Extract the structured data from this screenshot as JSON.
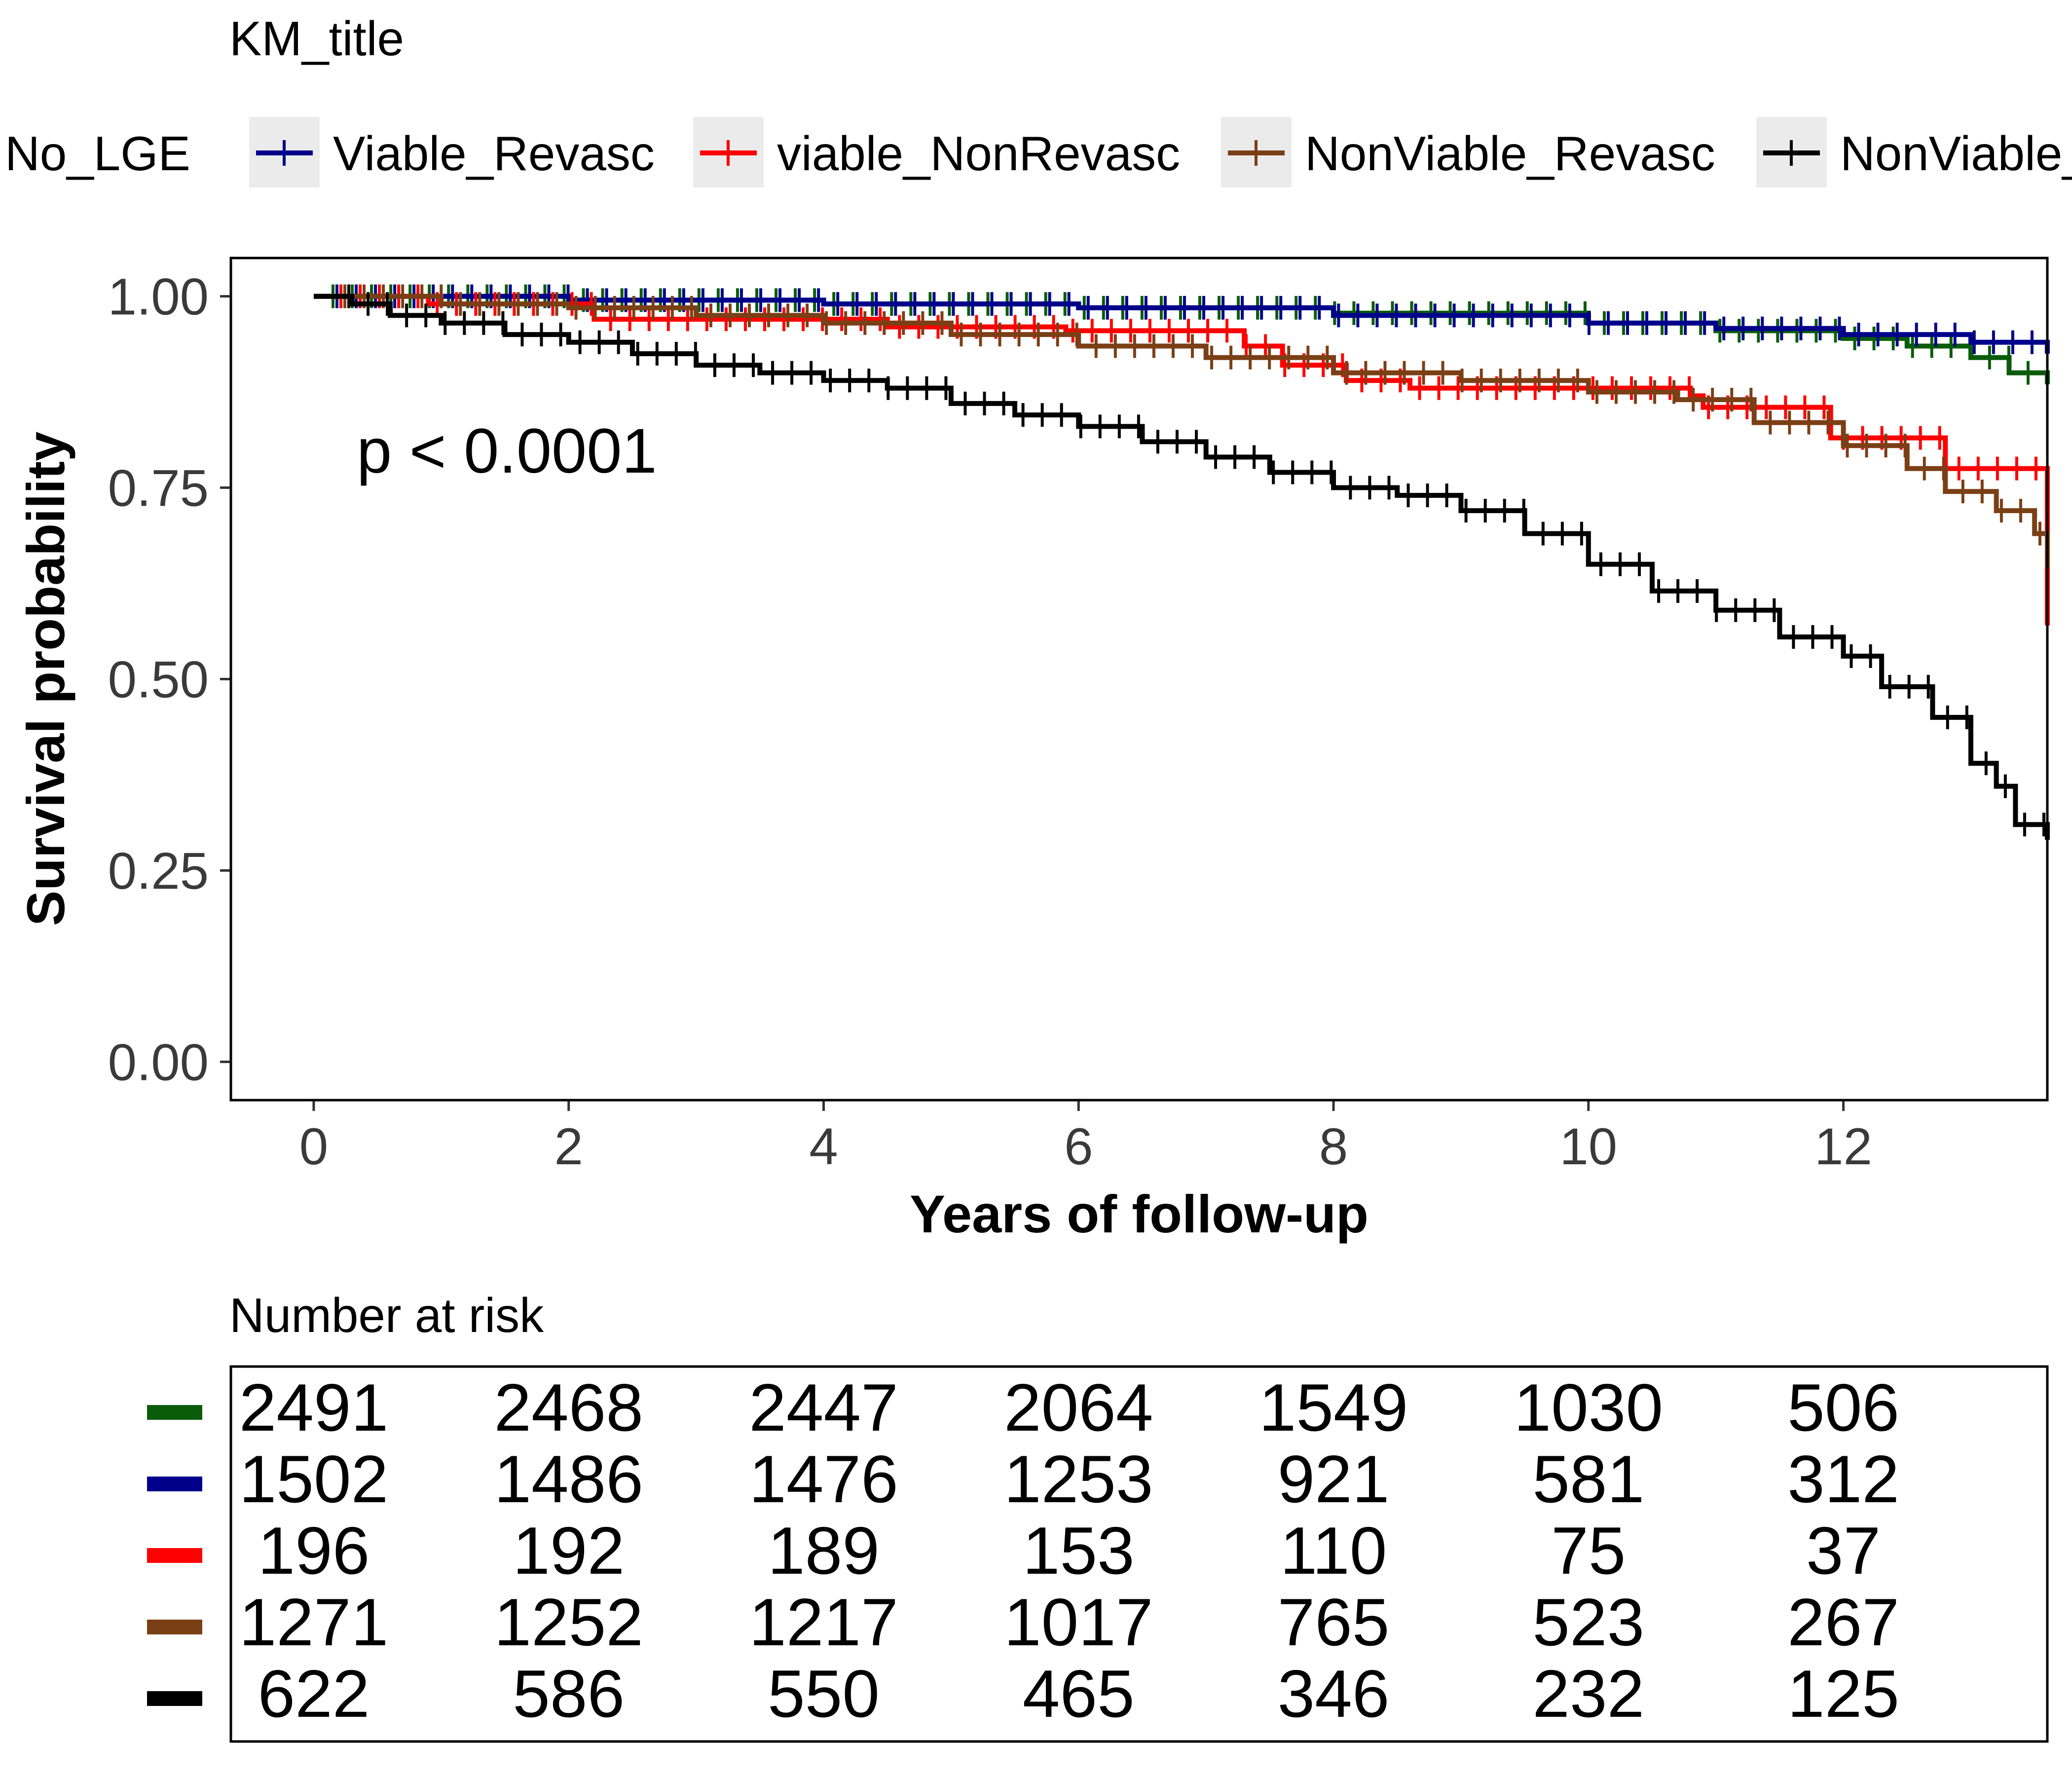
{
  "chart_data": {
    "type": "line",
    "title": "KM_title",
    "xlabel": "Years of follow-up",
    "ylabel": "Survival probability",
    "xlim": [
      -0.65,
      13.6
    ],
    "ylim": [
      -0.05,
      1.05
    ],
    "x_ticks": [
      "0",
      "2",
      "4",
      "6",
      "8",
      "10",
      "12"
    ],
    "y_ticks": [
      "0.00",
      "0.25",
      "0.50",
      "0.75",
      "1.00"
    ],
    "annotation": "p < 0.0001",
    "legend_position": "top",
    "grid": false,
    "series": [
      {
        "name": "No_LGE",
        "color": "#0a5c0a",
        "points": [
          [
            0,
            1.0
          ],
          [
            2,
            0.995
          ],
          [
            4,
            0.99
          ],
          [
            6,
            0.985
          ],
          [
            8,
            0.978
          ],
          [
            10,
            0.965
          ],
          [
            11,
            0.955
          ],
          [
            12,
            0.945
          ],
          [
            12.5,
            0.935
          ],
          [
            13,
            0.92
          ],
          [
            13.3,
            0.9
          ],
          [
            13.6,
            0.885
          ]
        ]
      },
      {
        "name": "Viable_Revasc",
        "color": "#00008b",
        "points": [
          [
            0,
            1.0
          ],
          [
            2,
            0.995
          ],
          [
            4,
            0.99
          ],
          [
            6,
            0.985
          ],
          [
            8,
            0.975
          ],
          [
            10,
            0.965
          ],
          [
            11,
            0.958
          ],
          [
            12,
            0.95
          ],
          [
            13,
            0.94
          ],
          [
            13.6,
            0.925
          ]
        ]
      },
      {
        "name": "viable_NonRevasc",
        "color": "#ff0000",
        "points": [
          [
            0,
            1.0
          ],
          [
            0.9,
            0.99
          ],
          [
            2.2,
            0.97
          ],
          [
            4.5,
            0.96
          ],
          [
            5.9,
            0.955
          ],
          [
            7.3,
            0.935
          ],
          [
            7.6,
            0.91
          ],
          [
            8.1,
            0.89
          ],
          [
            8.6,
            0.88
          ],
          [
            10.8,
            0.87
          ],
          [
            10.9,
            0.855
          ],
          [
            11.9,
            0.815
          ],
          [
            12.8,
            0.775
          ],
          [
            13.6,
            0.775
          ],
          [
            13.6,
            0.57
          ]
        ]
      },
      {
        "name": "NonViable_Revasc",
        "color": "#7b3f16",
        "points": [
          [
            0,
            1.0
          ],
          [
            1,
            0.99
          ],
          [
            2,
            0.985
          ],
          [
            3,
            0.975
          ],
          [
            4,
            0.965
          ],
          [
            5,
            0.95
          ],
          [
            6,
            0.935
          ],
          [
            7,
            0.92
          ],
          [
            8,
            0.9
          ],
          [
            9,
            0.89
          ],
          [
            10,
            0.875
          ],
          [
            10.7,
            0.865
          ],
          [
            11.3,
            0.835
          ],
          [
            12,
            0.805
          ],
          [
            12.5,
            0.775
          ],
          [
            12.8,
            0.745
          ],
          [
            13.2,
            0.72
          ],
          [
            13.5,
            0.69
          ],
          [
            13.6,
            0.645
          ]
        ]
      },
      {
        "name": "NonViable_NonRevasc",
        "color": "#000000",
        "points": [
          [
            0,
            1.0
          ],
          [
            0.3,
            0.99
          ],
          [
            0.6,
            0.975
          ],
          [
            1,
            0.965
          ],
          [
            1.5,
            0.95
          ],
          [
            2,
            0.94
          ],
          [
            2.5,
            0.925
          ],
          [
            3,
            0.91
          ],
          [
            3.5,
            0.9
          ],
          [
            4,
            0.89
          ],
          [
            4.5,
            0.88
          ],
          [
            5,
            0.86
          ],
          [
            5.5,
            0.845
          ],
          [
            6,
            0.83
          ],
          [
            6.5,
            0.81
          ],
          [
            7,
            0.79
          ],
          [
            7.5,
            0.77
          ],
          [
            8,
            0.75
          ],
          [
            8.5,
            0.74
          ],
          [
            9,
            0.72
          ],
          [
            9.5,
            0.69
          ],
          [
            10,
            0.65
          ],
          [
            10.5,
            0.615
          ],
          [
            11,
            0.59
          ],
          [
            11.5,
            0.555
          ],
          [
            12,
            0.53
          ],
          [
            12.3,
            0.49
          ],
          [
            12.7,
            0.45
          ],
          [
            13,
            0.39
          ],
          [
            13.2,
            0.36
          ],
          [
            13.35,
            0.31
          ],
          [
            13.6,
            0.29
          ]
        ]
      }
    ]
  },
  "risk_table": {
    "title": "Number at risk",
    "rows": [
      {
        "color": "#0a5c0a",
        "values": [
          "2491",
          "2468",
          "2447",
          "2064",
          "1549",
          "1030",
          "506"
        ]
      },
      {
        "color": "#00008b",
        "values": [
          "1502",
          "1486",
          "1476",
          "1253",
          "921",
          "581",
          "312"
        ]
      },
      {
        "color": "#ff0000",
        "values": [
          "196",
          "192",
          "189",
          "153",
          "110",
          "75",
          "37"
        ]
      },
      {
        "color": "#7b3f16",
        "values": [
          "1271",
          "1252",
          "1217",
          "1017",
          "765",
          "523",
          "267"
        ]
      },
      {
        "color": "#000000",
        "values": [
          "622",
          "586",
          "550",
          "465",
          "346",
          "232",
          "125"
        ]
      }
    ]
  }
}
